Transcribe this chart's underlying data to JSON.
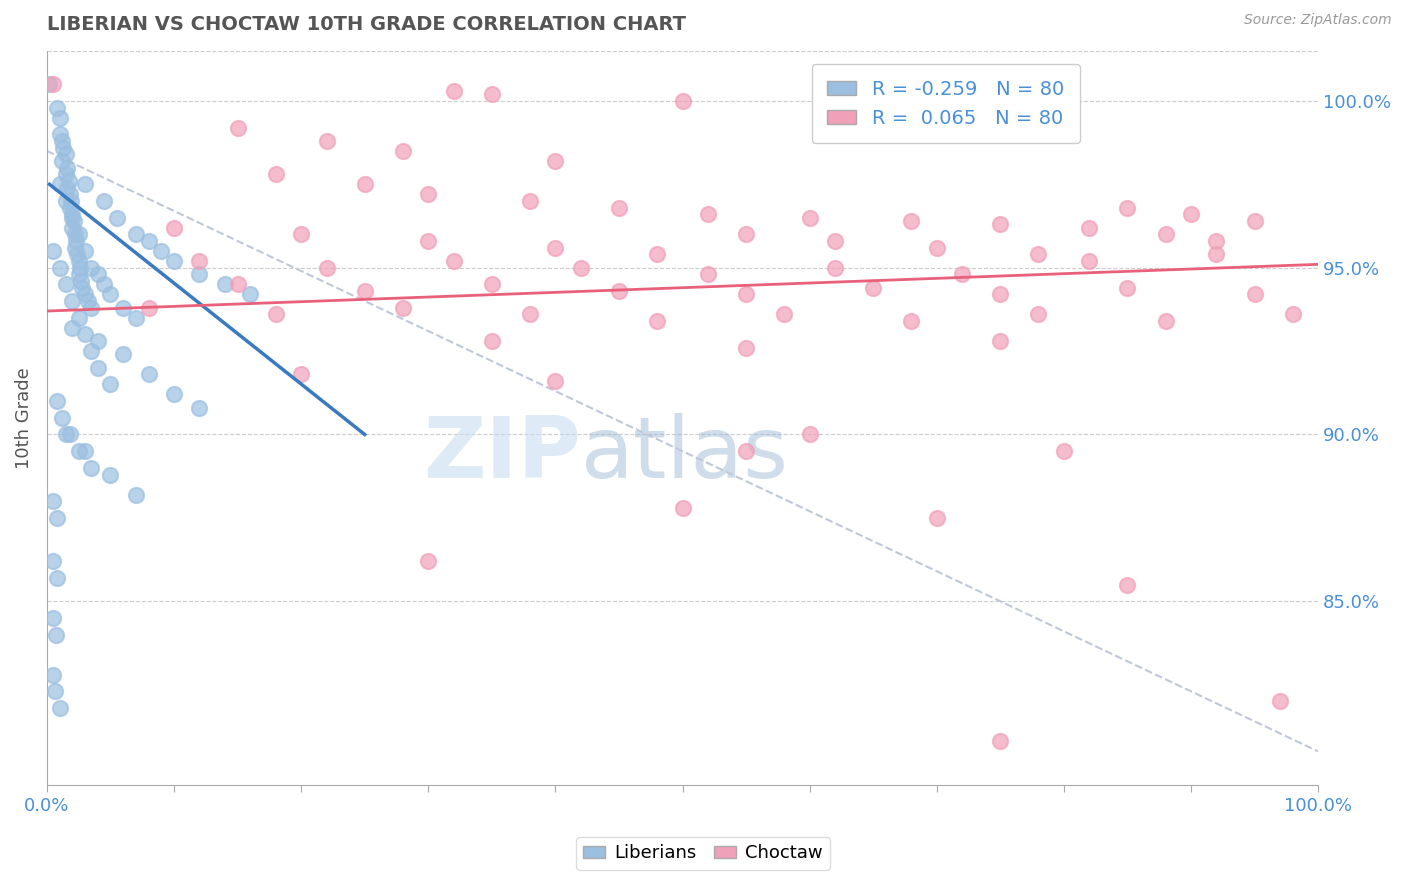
{
  "title": "LIBERIAN VS CHOCTAW 10TH GRADE CORRELATION CHART",
  "source": "Source: ZipAtlas.com",
  "ylabel": "10th Grade",
  "ylabel_right_ticks": [
    "100.0%",
    "95.0%",
    "90.0%",
    "85.0%"
  ],
  "ylabel_right_vals": [
    1.0,
    0.95,
    0.9,
    0.85
  ],
  "xlim": [
    0.0,
    1.0
  ],
  "ylim": [
    0.795,
    1.015
  ],
  "liberian_R": -0.259,
  "choctaw_R": 0.065,
  "N": 80,
  "liberian_color": "#9bbfe0",
  "choctaw_color": "#f0a0b8",
  "liberian_line_color": "#3a7abf",
  "choctaw_line_color": "#e8607a",
  "dashed_line_color": "#c0c8d8",
  "background_color": "#ffffff",
  "liberian_points": [
    [
      0.002,
      1.005
    ],
    [
      0.008,
      0.998
    ],
    [
      0.01,
      0.995
    ],
    [
      0.01,
      0.99
    ],
    [
      0.012,
      0.988
    ],
    [
      0.012,
      0.982
    ],
    [
      0.013,
      0.986
    ],
    [
      0.015,
      0.984
    ],
    [
      0.015,
      0.978
    ],
    [
      0.016,
      0.98
    ],
    [
      0.016,
      0.974
    ],
    [
      0.017,
      0.976
    ],
    [
      0.018,
      0.972
    ],
    [
      0.018,
      0.968
    ],
    [
      0.019,
      0.97
    ],
    [
      0.02,
      0.966
    ],
    [
      0.02,
      0.962
    ],
    [
      0.021,
      0.964
    ],
    [
      0.022,
      0.96
    ],
    [
      0.022,
      0.956
    ],
    [
      0.023,
      0.958
    ],
    [
      0.024,
      0.954
    ],
    [
      0.025,
      0.952
    ],
    [
      0.025,
      0.948
    ],
    [
      0.026,
      0.95
    ],
    [
      0.027,
      0.946
    ],
    [
      0.028,
      0.944
    ],
    [
      0.03,
      0.942
    ],
    [
      0.032,
      0.94
    ],
    [
      0.035,
      0.938
    ],
    [
      0.01,
      0.975
    ],
    [
      0.015,
      0.97
    ],
    [
      0.02,
      0.965
    ],
    [
      0.025,
      0.96
    ],
    [
      0.03,
      0.955
    ],
    [
      0.035,
      0.95
    ],
    [
      0.04,
      0.948
    ],
    [
      0.045,
      0.945
    ],
    [
      0.05,
      0.942
    ],
    [
      0.06,
      0.938
    ],
    [
      0.07,
      0.935
    ],
    [
      0.005,
      0.955
    ],
    [
      0.01,
      0.95
    ],
    [
      0.015,
      0.945
    ],
    [
      0.02,
      0.94
    ],
    [
      0.025,
      0.935
    ],
    [
      0.03,
      0.93
    ],
    [
      0.035,
      0.925
    ],
    [
      0.04,
      0.92
    ],
    [
      0.05,
      0.915
    ],
    [
      0.008,
      0.91
    ],
    [
      0.012,
      0.905
    ],
    [
      0.018,
      0.9
    ],
    [
      0.025,
      0.895
    ],
    [
      0.035,
      0.89
    ],
    [
      0.005,
      0.88
    ],
    [
      0.008,
      0.875
    ],
    [
      0.005,
      0.862
    ],
    [
      0.008,
      0.857
    ],
    [
      0.005,
      0.845
    ],
    [
      0.007,
      0.84
    ],
    [
      0.005,
      0.828
    ],
    [
      0.006,
      0.823
    ],
    [
      0.01,
      0.818
    ],
    [
      0.03,
      0.975
    ],
    [
      0.045,
      0.97
    ],
    [
      0.055,
      0.965
    ],
    [
      0.07,
      0.96
    ],
    [
      0.08,
      0.958
    ],
    [
      0.09,
      0.955
    ],
    [
      0.1,
      0.952
    ],
    [
      0.12,
      0.948
    ],
    [
      0.14,
      0.945
    ],
    [
      0.16,
      0.942
    ],
    [
      0.02,
      0.932
    ],
    [
      0.04,
      0.928
    ],
    [
      0.06,
      0.924
    ],
    [
      0.08,
      0.918
    ],
    [
      0.1,
      0.912
    ],
    [
      0.12,
      0.908
    ],
    [
      0.015,
      0.9
    ],
    [
      0.03,
      0.895
    ],
    [
      0.05,
      0.888
    ],
    [
      0.07,
      0.882
    ]
  ],
  "choctaw_points": [
    [
      0.005,
      1.005
    ],
    [
      0.32,
      1.003
    ],
    [
      0.35,
      1.002
    ],
    [
      0.5,
      1.0
    ],
    [
      0.8,
      0.998
    ],
    [
      0.15,
      0.992
    ],
    [
      0.22,
      0.988
    ],
    [
      0.28,
      0.985
    ],
    [
      0.4,
      0.982
    ],
    [
      0.18,
      0.978
    ],
    [
      0.25,
      0.975
    ],
    [
      0.3,
      0.972
    ],
    [
      0.38,
      0.97
    ],
    [
      0.45,
      0.968
    ],
    [
      0.52,
      0.966
    ],
    [
      0.6,
      0.965
    ],
    [
      0.68,
      0.964
    ],
    [
      0.75,
      0.963
    ],
    [
      0.85,
      0.968
    ],
    [
      0.9,
      0.966
    ],
    [
      0.95,
      0.964
    ],
    [
      0.1,
      0.962
    ],
    [
      0.2,
      0.96
    ],
    [
      0.3,
      0.958
    ],
    [
      0.4,
      0.956
    ],
    [
      0.48,
      0.954
    ],
    [
      0.55,
      0.96
    ],
    [
      0.62,
      0.958
    ],
    [
      0.7,
      0.956
    ],
    [
      0.78,
      0.954
    ],
    [
      0.82,
      0.962
    ],
    [
      0.88,
      0.96
    ],
    [
      0.92,
      0.958
    ],
    [
      0.12,
      0.952
    ],
    [
      0.22,
      0.95
    ],
    [
      0.32,
      0.952
    ],
    [
      0.42,
      0.95
    ],
    [
      0.52,
      0.948
    ],
    [
      0.62,
      0.95
    ],
    [
      0.72,
      0.948
    ],
    [
      0.82,
      0.952
    ],
    [
      0.92,
      0.954
    ],
    [
      0.15,
      0.945
    ],
    [
      0.25,
      0.943
    ],
    [
      0.35,
      0.945
    ],
    [
      0.45,
      0.943
    ],
    [
      0.55,
      0.942
    ],
    [
      0.65,
      0.944
    ],
    [
      0.75,
      0.942
    ],
    [
      0.85,
      0.944
    ],
    [
      0.95,
      0.942
    ],
    [
      0.08,
      0.938
    ],
    [
      0.18,
      0.936
    ],
    [
      0.28,
      0.938
    ],
    [
      0.38,
      0.936
    ],
    [
      0.48,
      0.934
    ],
    [
      0.58,
      0.936
    ],
    [
      0.68,
      0.934
    ],
    [
      0.78,
      0.936
    ],
    [
      0.88,
      0.934
    ],
    [
      0.98,
      0.936
    ],
    [
      0.35,
      0.928
    ],
    [
      0.55,
      0.926
    ],
    [
      0.75,
      0.928
    ],
    [
      0.2,
      0.918
    ],
    [
      0.4,
      0.916
    ],
    [
      0.55,
      0.895
    ],
    [
      0.7,
      0.875
    ],
    [
      0.85,
      0.855
    ],
    [
      0.5,
      0.878
    ],
    [
      0.3,
      0.862
    ],
    [
      0.75,
      0.808
    ],
    [
      0.97,
      0.82
    ],
    [
      0.6,
      0.9
    ],
    [
      0.8,
      0.895
    ]
  ]
}
